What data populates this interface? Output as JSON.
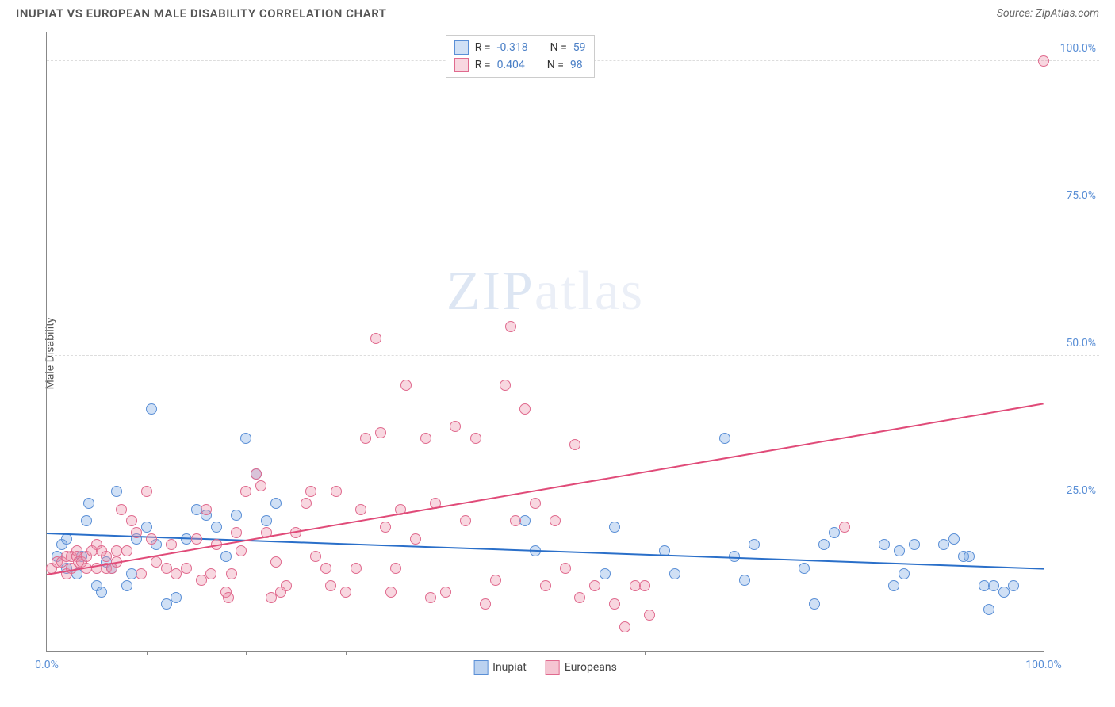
{
  "title": "INUPIAT VS EUROPEAN MALE DISABILITY CORRELATION CHART",
  "source": "Source: ZipAtlas.com",
  "ylabel": "Male Disability",
  "watermark": {
    "zip": "ZIP",
    "atlas": "atlas"
  },
  "chart": {
    "type": "scatter",
    "xlim": [
      0,
      100
    ],
    "ylim": [
      0,
      105
    ],
    "yticks": [
      25,
      50,
      75,
      100
    ],
    "ytick_labels": [
      "25.0%",
      "50.0%",
      "75.0%",
      "100.0%"
    ],
    "xticks_minor": [
      10,
      20,
      30,
      40,
      50,
      60,
      70,
      80,
      90
    ],
    "xtick_labels": [
      {
        "pos": 0,
        "label": "0.0%"
      },
      {
        "pos": 100,
        "label": "100.0%"
      }
    ],
    "background_color": "#ffffff",
    "grid_color": "#dddddd",
    "axis_color": "#888888",
    "series": [
      {
        "name": "Inupiat",
        "fill_color": "rgba(120,165,225,0.35)",
        "stroke_color": "#5a8fd6",
        "marker_size": 14,
        "r_value": "-0.318",
        "n_value": "59",
        "trend": {
          "x1": 0,
          "y1": 20,
          "x2": 100,
          "y2": 14,
          "color": "#2a6fc9",
          "width": 2
        },
        "points": [
          [
            1,
            16
          ],
          [
            1.5,
            18
          ],
          [
            2,
            19
          ],
          [
            2,
            14
          ],
          [
            3,
            13
          ],
          [
            3.5,
            16
          ],
          [
            4,
            22
          ],
          [
            4.2,
            25
          ],
          [
            5,
            11
          ],
          [
            5.5,
            10
          ],
          [
            6,
            15
          ],
          [
            6.5,
            14
          ],
          [
            7,
            27
          ],
          [
            8,
            11
          ],
          [
            8.5,
            13
          ],
          [
            9,
            19
          ],
          [
            10,
            21
          ],
          [
            10.5,
            41
          ],
          [
            11,
            18
          ],
          [
            12,
            8
          ],
          [
            13,
            9
          ],
          [
            14,
            19
          ],
          [
            15,
            24
          ],
          [
            16,
            23
          ],
          [
            17,
            21
          ],
          [
            18,
            16
          ],
          [
            19,
            23
          ],
          [
            20,
            36
          ],
          [
            21,
            30
          ],
          [
            22,
            22
          ],
          [
            23,
            25
          ],
          [
            48,
            22
          ],
          [
            49,
            17
          ],
          [
            56,
            13
          ],
          [
            57,
            21
          ],
          [
            62,
            17
          ],
          [
            63,
            13
          ],
          [
            68,
            36
          ],
          [
            69,
            16
          ],
          [
            70,
            12
          ],
          [
            71,
            18
          ],
          [
            76,
            14
          ],
          [
            77,
            8
          ],
          [
            78,
            18
          ],
          [
            79,
            20
          ],
          [
            84,
            18
          ],
          [
            85,
            11
          ],
          [
            85.5,
            17
          ],
          [
            86,
            13
          ],
          [
            87,
            18
          ],
          [
            90,
            18
          ],
          [
            91,
            19
          ],
          [
            92,
            16
          ],
          [
            92.5,
            16
          ],
          [
            94,
            11
          ],
          [
            94.5,
            7
          ],
          [
            95,
            11
          ],
          [
            96,
            10
          ],
          [
            97,
            11
          ]
        ]
      },
      {
        "name": "Europeans",
        "fill_color": "rgba(235,140,165,0.35)",
        "stroke_color": "#e06a8e",
        "marker_size": 14,
        "r_value": "0.404",
        "n_value": "98",
        "trend": {
          "x1": 0,
          "y1": 13,
          "x2": 100,
          "y2": 42,
          "color": "#e04a78",
          "width": 2
        },
        "points": [
          [
            0.5,
            14
          ],
          [
            1,
            15
          ],
          [
            1.5,
            15
          ],
          [
            2,
            16
          ],
          [
            2,
            13
          ],
          [
            2.5,
            16
          ],
          [
            2.5,
            14
          ],
          [
            3,
            17
          ],
          [
            3,
            16
          ],
          [
            3.2,
            15
          ],
          [
            3.5,
            15
          ],
          [
            4,
            16
          ],
          [
            4,
            14
          ],
          [
            4.5,
            17
          ],
          [
            5,
            14
          ],
          [
            5,
            18
          ],
          [
            5.5,
            17
          ],
          [
            6,
            14
          ],
          [
            6,
            16
          ],
          [
            6.5,
            14
          ],
          [
            7,
            15
          ],
          [
            7,
            17
          ],
          [
            7.5,
            24
          ],
          [
            8,
            17
          ],
          [
            8.5,
            22
          ],
          [
            9,
            20
          ],
          [
            9.5,
            13
          ],
          [
            10,
            27
          ],
          [
            10.5,
            19
          ],
          [
            11,
            15
          ],
          [
            12,
            14
          ],
          [
            12.5,
            18
          ],
          [
            13,
            13
          ],
          [
            14,
            14
          ],
          [
            15,
            19
          ],
          [
            15.5,
            12
          ],
          [
            16,
            24
          ],
          [
            16.5,
            13
          ],
          [
            17,
            18
          ],
          [
            18,
            10
          ],
          [
            18.2,
            9
          ],
          [
            18.5,
            13
          ],
          [
            19,
            20
          ],
          [
            19.5,
            17
          ],
          [
            20,
            27
          ],
          [
            21,
            30
          ],
          [
            21.5,
            28
          ],
          [
            22,
            20
          ],
          [
            22.5,
            9
          ],
          [
            23,
            15
          ],
          [
            23.5,
            10
          ],
          [
            24,
            11
          ],
          [
            25,
            20
          ],
          [
            26,
            25
          ],
          [
            26.5,
            27
          ],
          [
            27,
            16
          ],
          [
            28,
            14
          ],
          [
            28.5,
            11
          ],
          [
            29,
            27
          ],
          [
            30,
            10
          ],
          [
            31,
            14
          ],
          [
            31.5,
            24
          ],
          [
            32,
            36
          ],
          [
            33,
            53
          ],
          [
            33.5,
            37
          ],
          [
            34,
            21
          ],
          [
            34.5,
            10
          ],
          [
            35,
            14
          ],
          [
            35.5,
            24
          ],
          [
            36,
            45
          ],
          [
            37,
            19
          ],
          [
            38,
            36
          ],
          [
            38.5,
            9
          ],
          [
            39,
            25
          ],
          [
            40,
            10
          ],
          [
            41,
            38
          ],
          [
            42,
            22
          ],
          [
            43,
            36
          ],
          [
            44,
            8
          ],
          [
            45,
            12
          ],
          [
            46,
            45
          ],
          [
            46.5,
            55
          ],
          [
            47,
            22
          ],
          [
            48,
            41
          ],
          [
            49,
            25
          ],
          [
            50,
            11
          ],
          [
            51,
            22
          ],
          [
            52,
            14
          ],
          [
            53,
            35
          ],
          [
            53.5,
            9
          ],
          [
            55,
            11
          ],
          [
            57,
            8
          ],
          [
            58,
            4
          ],
          [
            59,
            11
          ],
          [
            60,
            11
          ],
          [
            60.5,
            6
          ],
          [
            80,
            21
          ],
          [
            100,
            100
          ]
        ]
      }
    ]
  },
  "legend_bottom": [
    {
      "name": "Inupiat",
      "fill": "rgba(120,165,225,0.5)",
      "stroke": "#5a8fd6"
    },
    {
      "name": "Europeans",
      "fill": "rgba(235,140,165,0.5)",
      "stroke": "#e06a8e"
    }
  ]
}
